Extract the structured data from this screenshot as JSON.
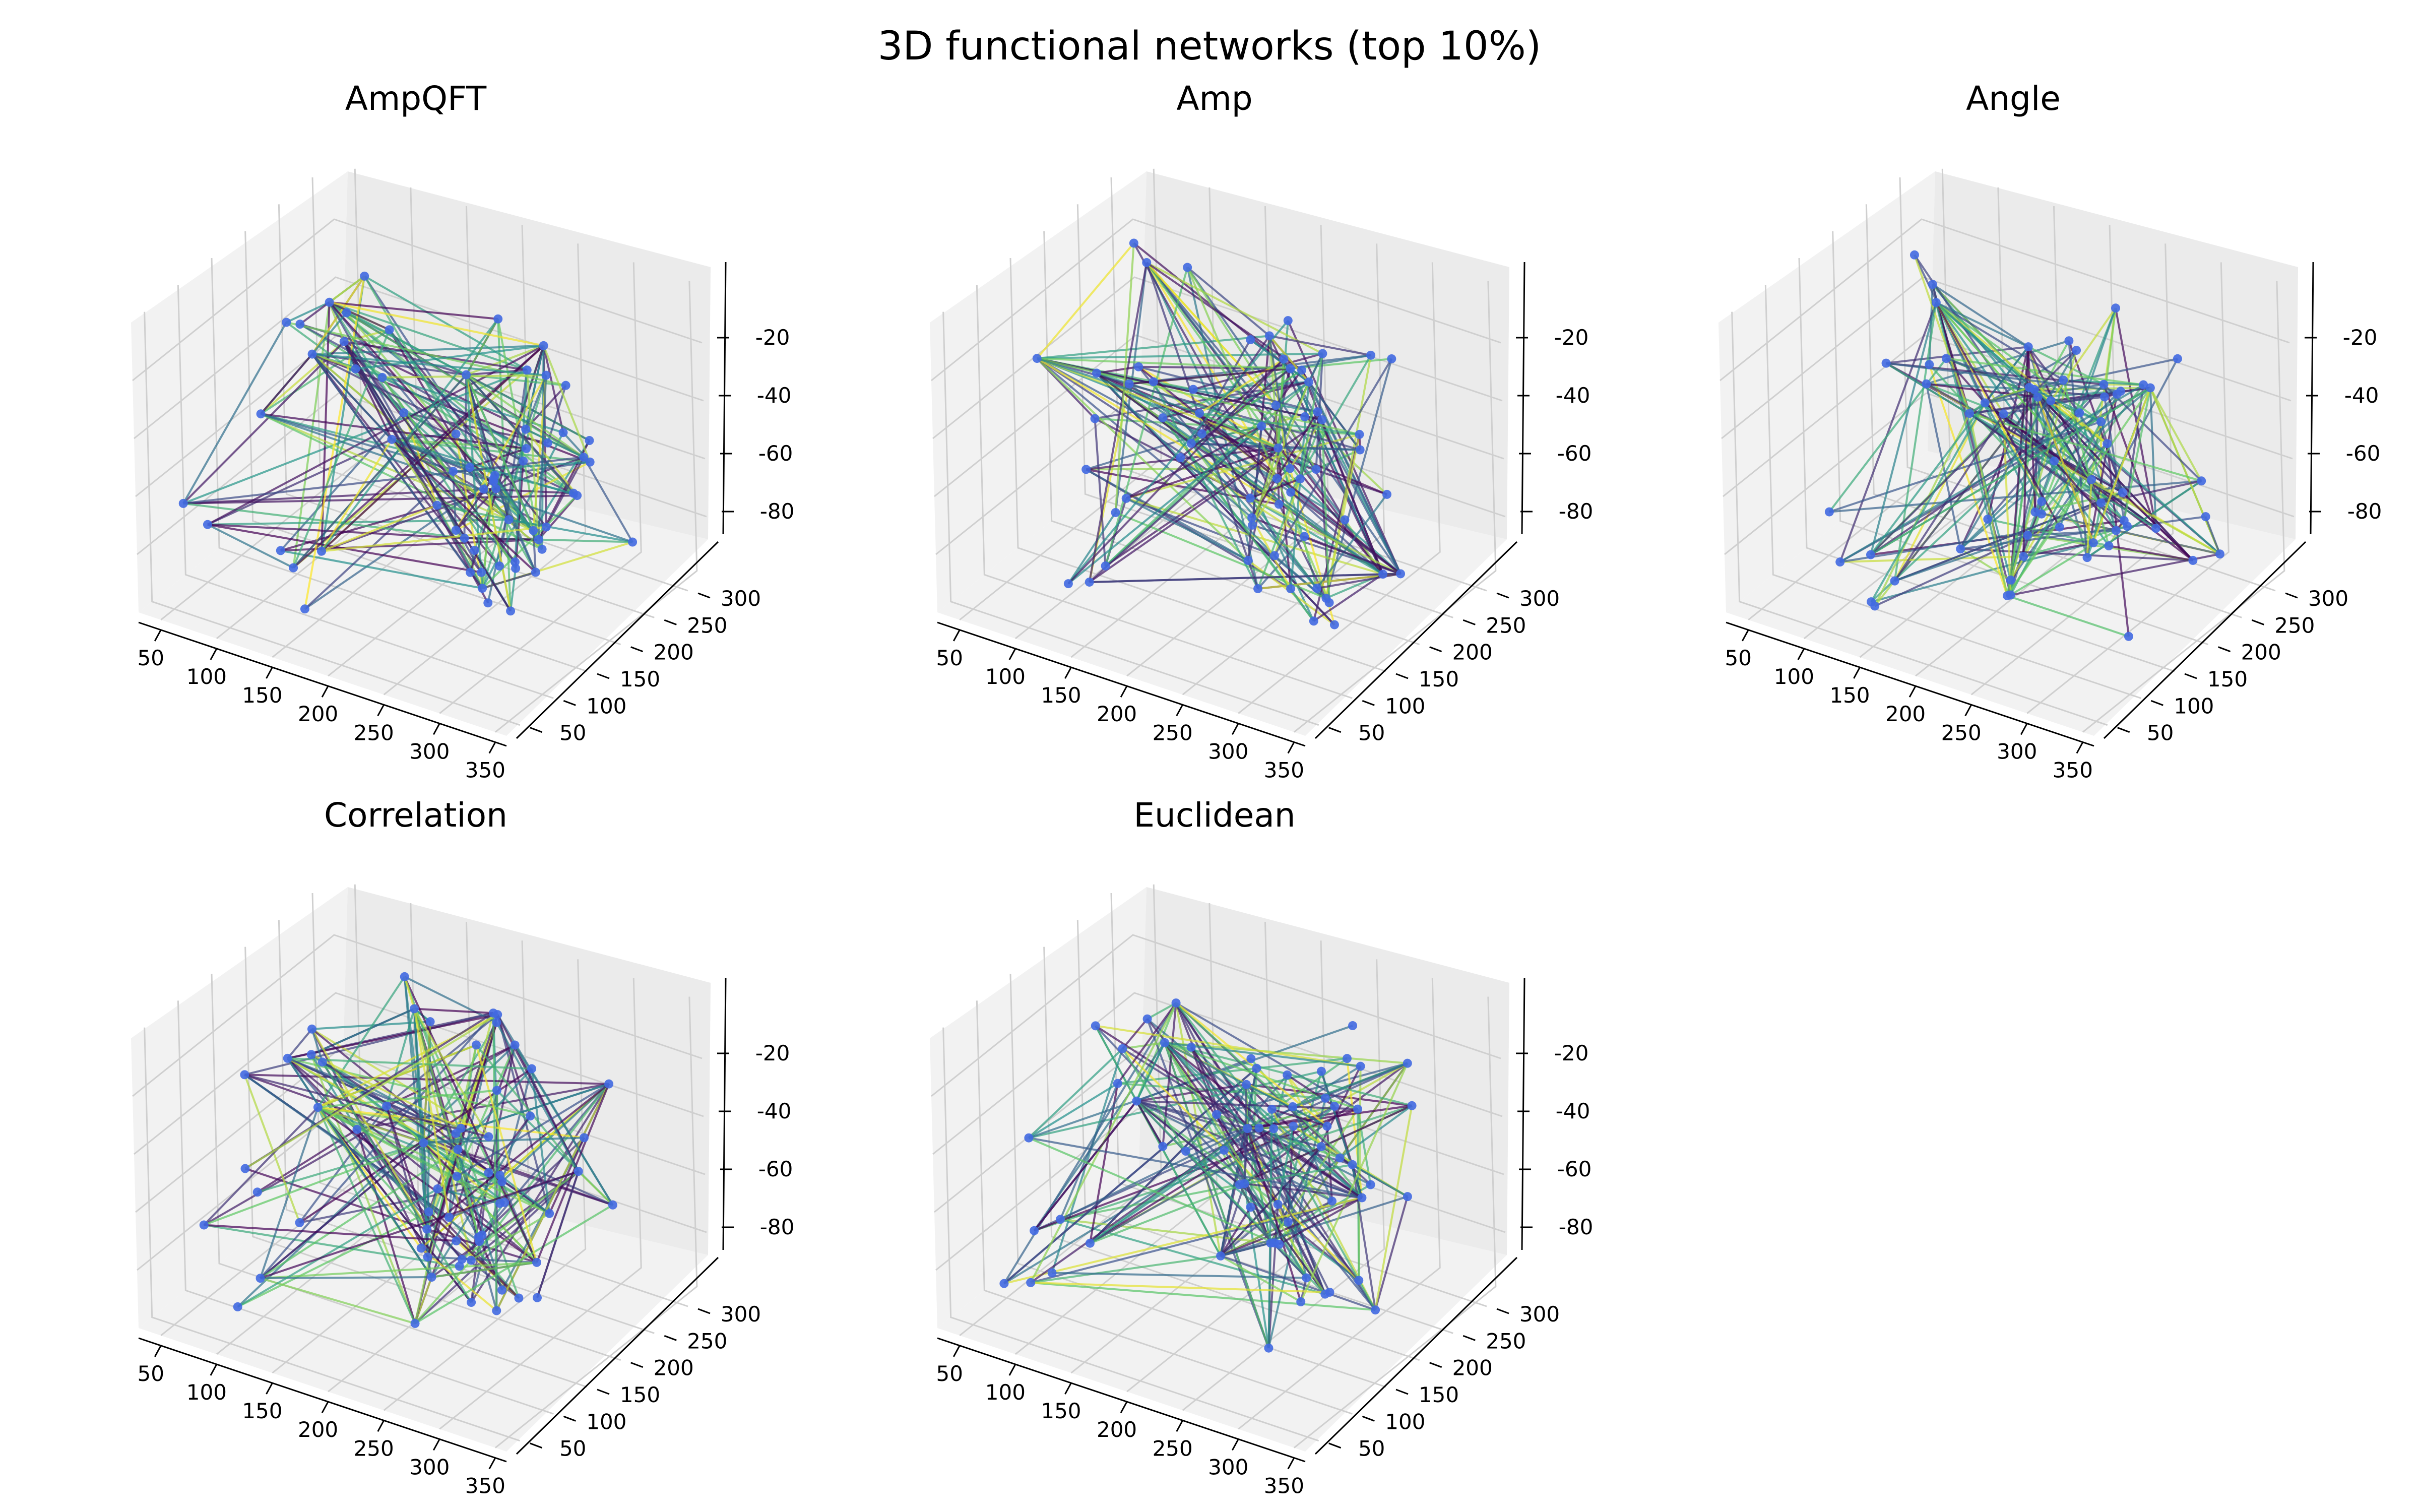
{
  "figure": {
    "title": "3D functional networks (top 10%)"
  },
  "chart_data": [
    {
      "type": "3d-network",
      "title": "AmpQFT",
      "x_ticks": [
        50,
        100,
        150,
        200,
        250,
        300,
        350
      ],
      "y_ticks": [
        50,
        100,
        150,
        200,
        250,
        300
      ],
      "z_ticks": [
        -20,
        -40,
        -60,
        -80
      ],
      "xlim": [
        30,
        360
      ],
      "ylim": [
        30,
        330
      ],
      "zlim": [
        -100,
        0
      ],
      "grid": true,
      "node_color": "#4169e1",
      "edge_colormap": "viridis",
      "seed": 11
    },
    {
      "type": "3d-network",
      "title": "Amp",
      "x_ticks": [
        50,
        100,
        150,
        200,
        250,
        300,
        350
      ],
      "y_ticks": [
        50,
        100,
        150,
        200,
        250,
        300
      ],
      "z_ticks": [
        -20,
        -40,
        -60,
        -80
      ],
      "xlim": [
        30,
        360
      ],
      "ylim": [
        30,
        330
      ],
      "zlim": [
        -100,
        0
      ],
      "grid": true,
      "node_color": "#4169e1",
      "edge_colormap": "viridis",
      "seed": 23
    },
    {
      "type": "3d-network",
      "title": "Angle",
      "x_ticks": [
        50,
        100,
        150,
        200,
        250,
        300,
        350
      ],
      "y_ticks": [
        50,
        100,
        150,
        200,
        250,
        300
      ],
      "z_ticks": [
        -20,
        -40,
        -60,
        -80
      ],
      "xlim": [
        30,
        360
      ],
      "ylim": [
        30,
        330
      ],
      "zlim": [
        -100,
        0
      ],
      "grid": true,
      "node_color": "#4169e1",
      "edge_colormap": "viridis",
      "seed": 37
    },
    {
      "type": "3d-network",
      "title": "Correlation",
      "x_ticks": [
        50,
        100,
        150,
        200,
        250,
        300,
        350
      ],
      "y_ticks": [
        50,
        100,
        150,
        200,
        250,
        300
      ],
      "z_ticks": [
        -20,
        -40,
        -60,
        -80
      ],
      "xlim": [
        30,
        360
      ],
      "ylim": [
        30,
        330
      ],
      "zlim": [
        -100,
        0
      ],
      "grid": true,
      "node_color": "#4169e1",
      "edge_colormap": "viridis",
      "seed": 53
    },
    {
      "type": "3d-network",
      "title": "Euclidean",
      "x_ticks": [
        50,
        100,
        150,
        200,
        250,
        300,
        350
      ],
      "y_ticks": [
        50,
        100,
        150,
        200,
        250,
        300
      ],
      "z_ticks": [
        -20,
        -40,
        -60,
        -80
      ],
      "xlim": [
        30,
        360
      ],
      "ylim": [
        30,
        330
      ],
      "zlim": [
        -100,
        0
      ],
      "grid": true,
      "node_color": "#4169e1",
      "edge_colormap": "viridis",
      "seed": 71
    }
  ]
}
